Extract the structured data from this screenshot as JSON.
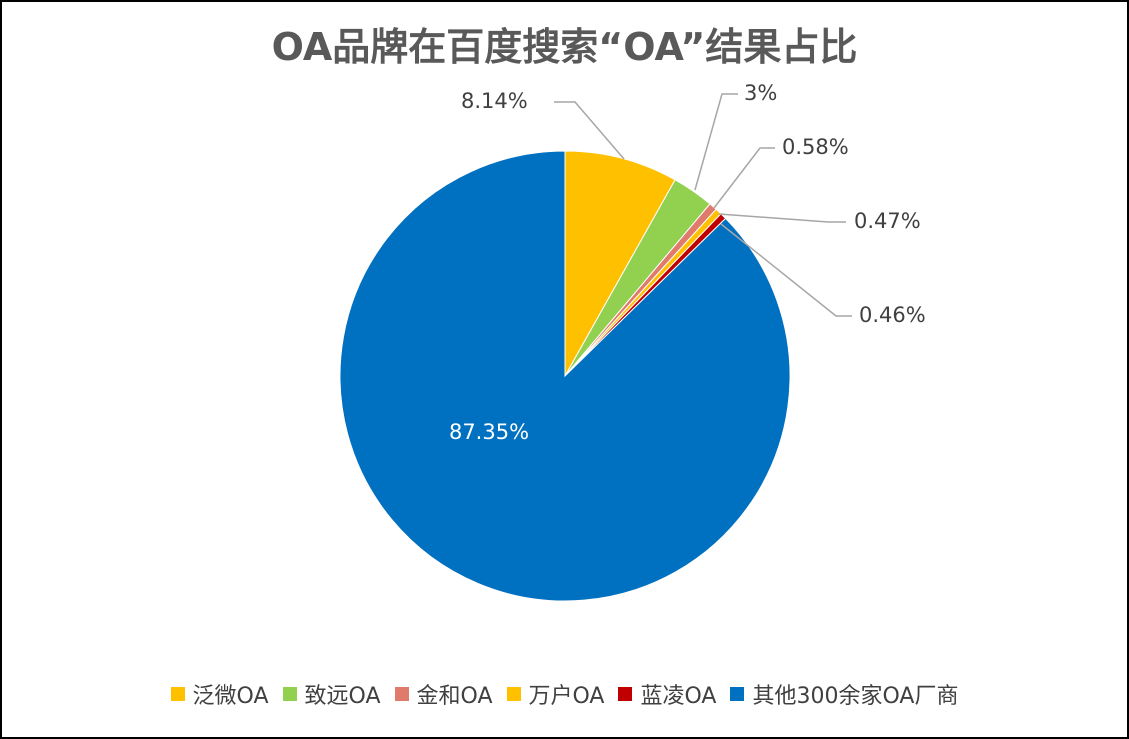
{
  "chart_data": {
    "type": "pie",
    "title": "OA品牌在百度搜索“OA”结果占比",
    "slices": [
      {
        "name": "泛微OA",
        "value": 8.14,
        "label": "8.14%",
        "color": "#FFC000"
      },
      {
        "name": "致远OA",
        "value": 3.0,
        "label": "3%",
        "color": "#92D050"
      },
      {
        "name": "金和OA",
        "value": 0.58,
        "label": "0.58%",
        "color": "#E07A6A"
      },
      {
        "name": "万户OA",
        "value": 0.47,
        "label": "0.47%",
        "color": "#FFC000"
      },
      {
        "name": "蓝凌OA",
        "value": 0.46,
        "label": "0.46%",
        "color": "#C00000"
      },
      {
        "name": "其他300余家OA厂商",
        "value": 87.35,
        "label": "87.35%",
        "color": "#0070C0"
      }
    ],
    "legend_position": "bottom"
  }
}
